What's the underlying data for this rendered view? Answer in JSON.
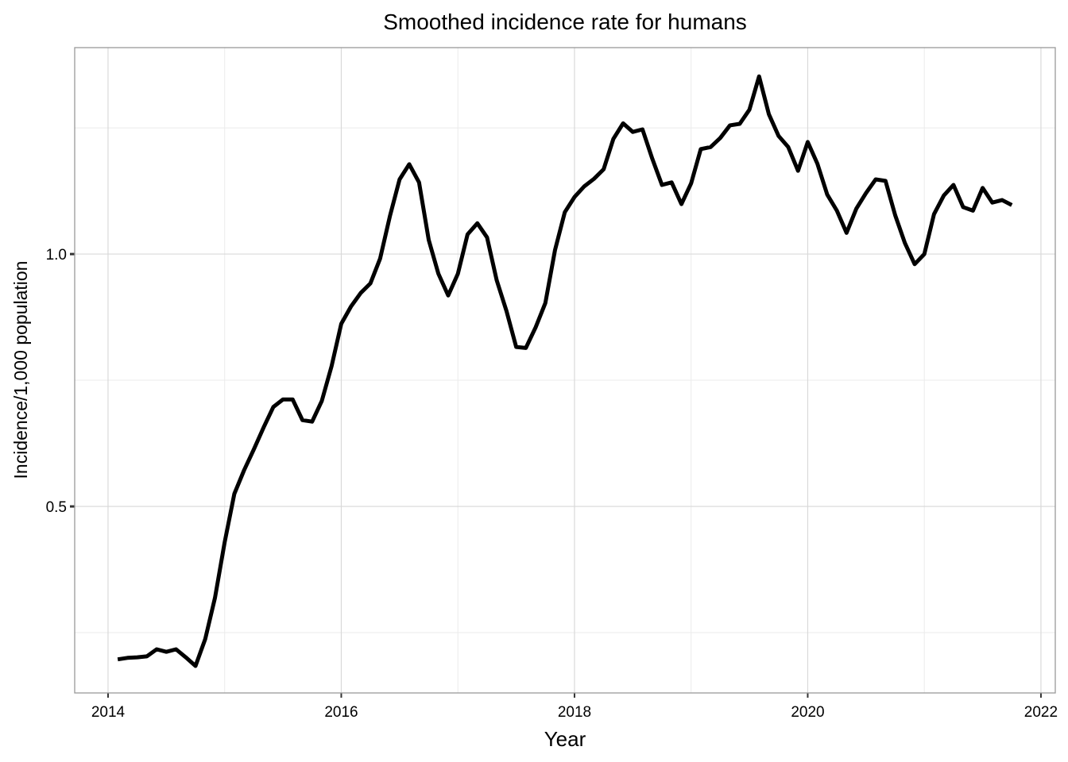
{
  "chart_data": {
    "type": "line",
    "title": "Smoothed incidence rate for humans",
    "x_label": "Year",
    "y_label": "Incidence/1,000 population",
    "x": [
      2014.083,
      2014.167,
      2014.25,
      2014.333,
      2014.417,
      2014.5,
      2014.583,
      2014.667,
      2014.75,
      2014.833,
      2014.917,
      2015,
      2015.083,
      2015.167,
      2015.25,
      2015.333,
      2015.417,
      2015.5,
      2015.583,
      2015.667,
      2015.75,
      2015.833,
      2015.917,
      2016,
      2016.083,
      2016.167,
      2016.25,
      2016.333,
      2016.417,
      2016.5,
      2016.583,
      2016.667,
      2016.75,
      2016.833,
      2016.917,
      2017,
      2017.083,
      2017.167,
      2017.25,
      2017.333,
      2017.417,
      2017.5,
      2017.583,
      2017.667,
      2017.75,
      2017.833,
      2017.917,
      2018,
      2018.083,
      2018.167,
      2018.25,
      2018.333,
      2018.417,
      2018.5,
      2018.583,
      2018.667,
      2018.75,
      2018.833,
      2018.917,
      2019,
      2019.083,
      2019.167,
      2019.25,
      2019.333,
      2019.417,
      2019.5,
      2019.583,
      2019.667,
      2019.75,
      2019.833,
      2019.917,
      2020,
      2020.083,
      2020.167,
      2020.25,
      2020.333,
      2020.417,
      2020.5,
      2020.583,
      2020.667,
      2020.75,
      2020.833,
      2020.917,
      2021,
      2021.083,
      2021.167,
      2021.25,
      2021.333,
      2021.417,
      2021.5,
      2021.583,
      2021.667,
      2021.75
    ],
    "series": [
      {
        "color": "#000000",
        "values": [
          0.197,
          0.2,
          0.201,
          0.203,
          0.217,
          0.212,
          0.217,
          0.201,
          0.184,
          0.237,
          0.319,
          0.429,
          0.525,
          0.572,
          0.613,
          0.656,
          0.697,
          0.712,
          0.712,
          0.671,
          0.668,
          0.709,
          0.778,
          0.862,
          0.896,
          0.923,
          0.942,
          0.991,
          1.075,
          1.148,
          1.178,
          1.142,
          1.028,
          0.961,
          0.918,
          0.961,
          1.039,
          1.061,
          1.033,
          0.948,
          0.887,
          0.816,
          0.814,
          0.855,
          0.903,
          1.008,
          1.083,
          1.113,
          1.134,
          1.149,
          1.168,
          1.228,
          1.259,
          1.242,
          1.247,
          1.189,
          1.137,
          1.142,
          1.099,
          1.14,
          1.208,
          1.212,
          1.23,
          1.255,
          1.258,
          1.286,
          1.352,
          1.277,
          1.234,
          1.212,
          1.165,
          1.222,
          1.179,
          1.118,
          1.086,
          1.042,
          1.09,
          1.121,
          1.148,
          1.145,
          1.077,
          1.022,
          0.98,
          1.0,
          1.079,
          1.116,
          1.137,
          1.093,
          1.086,
          1.131,
          1.102,
          1.107,
          1.097
        ]
      }
    ],
    "xlim": [
      2013.714,
      2022.123
    ],
    "ylim": [
      0.1305,
      1.409
    ],
    "xticks": [
      2014,
      2016,
      2018,
      2020,
      2022
    ],
    "yticks": [
      {
        "value": 0.5,
        "label": "0.5"
      },
      {
        "value": 1,
        "label": "1.0"
      }
    ],
    "x_minor_grid": [
      2015,
      2017,
      2019,
      2021
    ],
    "y_minor_grid": [
      0.25,
      0.75,
      1.25
    ],
    "grid": true
  }
}
